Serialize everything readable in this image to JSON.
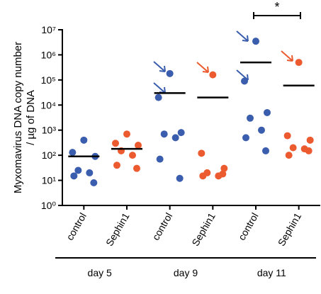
{
  "chart_data": {
    "type": "dot",
    "ylabel": [
      "Myxomavirus DNA copy number",
      "/ µg of DNA"
    ],
    "categories": [
      "control",
      "Sephin1",
      "control",
      "Sephin1",
      "control",
      "Sephin1"
    ],
    "groups": [
      "day 5",
      "day 9",
      "day 11"
    ],
    "colors": [
      "#3a5dae",
      "#ec5a2f",
      "#3a5dae",
      "#ec5a2f",
      "#3a5dae",
      "#ec5a2f"
    ],
    "values": [
      [
        400,
        130,
        90,
        25,
        20,
        15,
        8
      ],
      [
        700,
        300,
        250,
        150,
        100,
        40,
        30
      ],
      [
        180000,
        20000,
        800,
        700,
        500,
        70,
        12
      ],
      [
        160000,
        120,
        30,
        20,
        15,
        15,
        18
      ],
      [
        3500000,
        90000,
        5000,
        3000,
        1000,
        500,
        150
      ],
      [
        500000,
        600,
        400,
        200,
        180,
        100,
        150
      ]
    ],
    "medians": [
      90,
      180,
      30000,
      20000,
      500000,
      60000
    ],
    "annotation": "*",
    "log": true,
    "ylim": [
      1,
      10000000
    ],
    "yticks": [
      {
        "value": 1,
        "label": "10⁰"
      },
      {
        "value": 10,
        "label": "10¹"
      },
      {
        "value": 100,
        "label": "10²"
      },
      {
        "value": 1000,
        "label": "10³"
      },
      {
        "value": 10000,
        "label": "10⁴"
      },
      {
        "value": 100000,
        "label": "10⁵"
      },
      {
        "value": 1000000,
        "label": "10⁶"
      },
      {
        "value": 10000000,
        "label": "10⁷"
      }
    ]
  }
}
